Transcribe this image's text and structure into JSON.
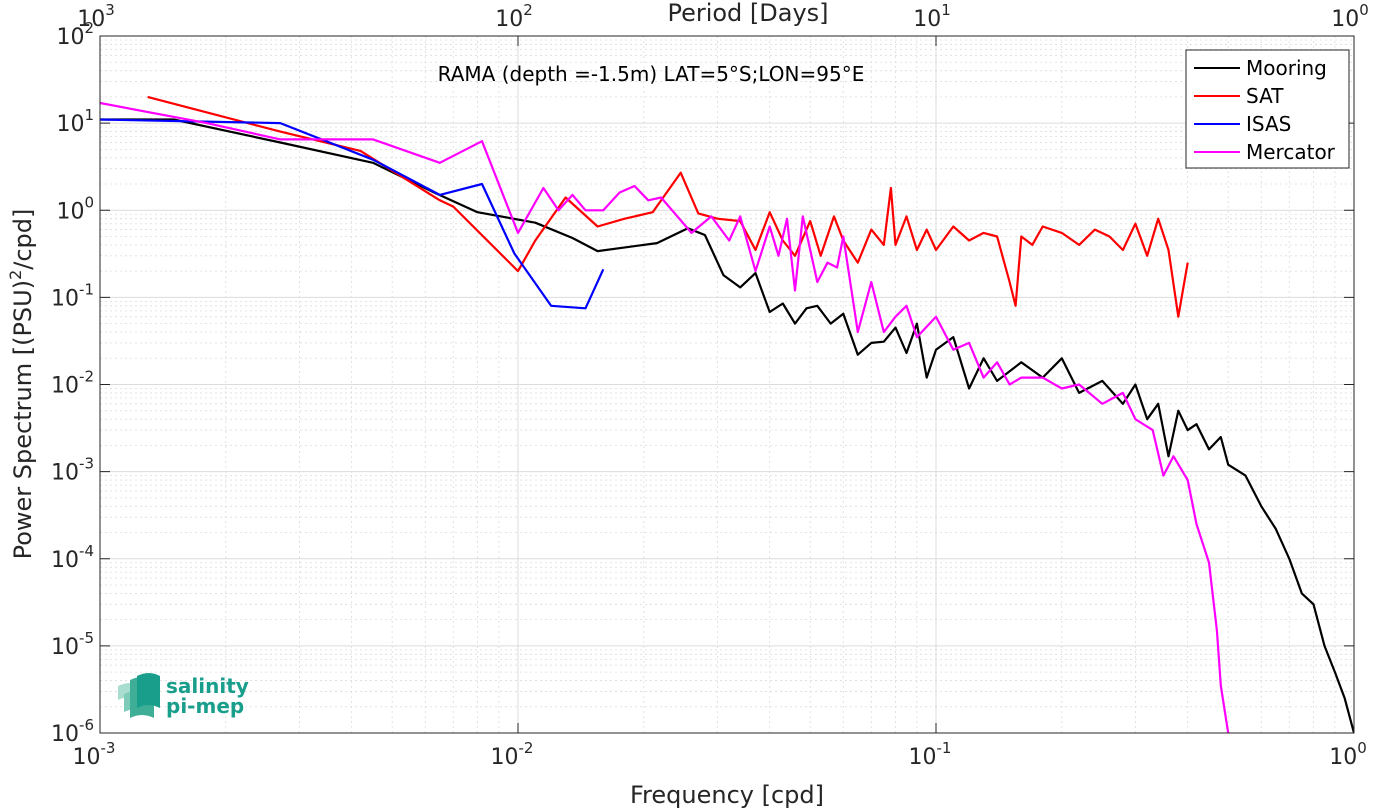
{
  "chart_data": {
    "type": "line",
    "title": "RAMA (depth =-1.5m) LAT=5°S;LON=95°E",
    "xlabel": "Frequency [cpd]",
    "ylabel_main": "Power Spectrum [(PSU)",
    "ylabel_sup": "2",
    "ylabel_tail": "/cpd]",
    "top_xlabel": "Period [Days]",
    "xscale": "log",
    "yscale": "log",
    "xlim": [
      0.001,
      1
    ],
    "ylim": [
      1e-06,
      100
    ],
    "grid": true,
    "legend_position": "top-right",
    "x_ticks": [
      {
        "value": 0.001,
        "base": "10",
        "exp": "-3"
      },
      {
        "value": 0.01,
        "base": "10",
        "exp": "-2"
      },
      {
        "value": 0.1,
        "base": "10",
        "exp": "-1"
      },
      {
        "value": 1,
        "base": "10",
        "exp": "0"
      }
    ],
    "top_ticks": [
      {
        "value": 0.001,
        "base": "10",
        "exp": "3"
      },
      {
        "value": 0.01,
        "base": "10",
        "exp": "2"
      },
      {
        "value": 0.1,
        "base": "10",
        "exp": "1"
      },
      {
        "value": 1,
        "base": "10",
        "exp": "0"
      }
    ],
    "y_ticks": [
      {
        "value": 100,
        "base": "10",
        "exp": "2"
      },
      {
        "value": 10,
        "base": "10",
        "exp": "1"
      },
      {
        "value": 1,
        "base": "10",
        "exp": "0"
      },
      {
        "value": 0.1,
        "base": "10",
        "exp": "-1"
      },
      {
        "value": 0.01,
        "base": "10",
        "exp": "-2"
      },
      {
        "value": 0.001,
        "base": "10",
        "exp": "-3"
      },
      {
        "value": 0.0001,
        "base": "10",
        "exp": "-4"
      },
      {
        "value": 1e-05,
        "base": "10",
        "exp": "-5"
      },
      {
        "value": 1e-06,
        "base": "10",
        "exp": "-6"
      }
    ],
    "series": [
      {
        "name": "Mooring",
        "color": "#000000",
        "x": [
          0.001,
          0.0015,
          0.0027,
          0.0045,
          0.0063,
          0.008,
          0.011,
          0.0135,
          0.0155,
          0.0215,
          0.0255,
          0.028,
          0.031,
          0.034,
          0.037,
          0.04,
          0.043,
          0.046,
          0.049,
          0.052,
          0.056,
          0.06,
          0.065,
          0.07,
          0.075,
          0.08,
          0.085,
          0.09,
          0.095,
          0.1,
          0.11,
          0.12,
          0.13,
          0.14,
          0.16,
          0.18,
          0.2,
          0.22,
          0.25,
          0.28,
          0.3,
          0.32,
          0.34,
          0.36,
          0.38,
          0.4,
          0.42,
          0.45,
          0.48,
          0.5,
          0.55,
          0.6,
          0.65,
          0.7,
          0.75,
          0.8,
          0.85,
          0.9,
          0.95,
          1.0
        ],
        "y": [
          11,
          11,
          6,
          3.5,
          1.6,
          0.95,
          0.72,
          0.48,
          0.34,
          0.42,
          0.62,
          0.52,
          0.18,
          0.13,
          0.19,
          0.068,
          0.085,
          0.05,
          0.075,
          0.08,
          0.05,
          0.065,
          0.022,
          0.03,
          0.031,
          0.045,
          0.023,
          0.05,
          0.012,
          0.025,
          0.035,
          0.009,
          0.02,
          0.011,
          0.018,
          0.012,
          0.02,
          0.008,
          0.011,
          0.006,
          0.01,
          0.004,
          0.006,
          0.0015,
          0.005,
          0.003,
          0.0035,
          0.0018,
          0.0025,
          0.0012,
          0.0009,
          0.0004,
          0.00022,
          0.0001,
          4e-05,
          3e-05,
          1e-05,
          5e-06,
          2.5e-06,
          1e-06
        ]
      },
      {
        "name": "SAT",
        "color": "#ff0000",
        "x": [
          0.0013,
          0.0027,
          0.0042,
          0.0065,
          0.007,
          0.01,
          0.011,
          0.013,
          0.0155,
          0.018,
          0.021,
          0.0245,
          0.027,
          0.03,
          0.034,
          0.037,
          0.04,
          0.043,
          0.046,
          0.05,
          0.053,
          0.057,
          0.06,
          0.065,
          0.07,
          0.075,
          0.078,
          0.08,
          0.085,
          0.09,
          0.095,
          0.1,
          0.11,
          0.12,
          0.13,
          0.14,
          0.15,
          0.155,
          0.16,
          0.17,
          0.18,
          0.2,
          0.22,
          0.24,
          0.26,
          0.28,
          0.3,
          0.32,
          0.34,
          0.36,
          0.38,
          0.4
        ],
        "y": [
          20,
          8,
          4.8,
          1.3,
          1.1,
          0.2,
          0.45,
          1.4,
          0.65,
          0.8,
          0.95,
          2.7,
          0.92,
          0.8,
          0.75,
          0.35,
          0.95,
          0.45,
          0.3,
          0.75,
          0.3,
          0.85,
          0.45,
          0.25,
          0.6,
          0.4,
          1.8,
          0.4,
          0.85,
          0.35,
          0.6,
          0.35,
          0.65,
          0.45,
          0.55,
          0.5,
          0.15,
          0.08,
          0.5,
          0.4,
          0.65,
          0.55,
          0.4,
          0.6,
          0.5,
          0.35,
          0.7,
          0.3,
          0.8,
          0.35,
          0.06,
          0.25
        ]
      },
      {
        "name": "ISAS",
        "color": "#0000ff",
        "x": [
          0.001,
          0.0027,
          0.0045,
          0.0065,
          0.0082,
          0.0098,
          0.012,
          0.0145,
          0.016
        ],
        "y": [
          11,
          10,
          3.8,
          1.5,
          2.0,
          0.32,
          0.08,
          0.075,
          0.21
        ]
      },
      {
        "name": "Mercator",
        "color": "#ff00ff",
        "x": [
          0.001,
          0.0018,
          0.0027,
          0.0045,
          0.0065,
          0.0082,
          0.01,
          0.0115,
          0.0125,
          0.0135,
          0.0145,
          0.016,
          0.0175,
          0.019,
          0.0205,
          0.022,
          0.026,
          0.029,
          0.032,
          0.034,
          0.037,
          0.04,
          0.042,
          0.044,
          0.046,
          0.048,
          0.052,
          0.055,
          0.058,
          0.06,
          0.065,
          0.07,
          0.075,
          0.08,
          0.085,
          0.09,
          0.1,
          0.11,
          0.12,
          0.13,
          0.14,
          0.15,
          0.16,
          0.18,
          0.2,
          0.22,
          0.25,
          0.28,
          0.3,
          0.33,
          0.35,
          0.37,
          0.4,
          0.42,
          0.45,
          0.47,
          0.48,
          0.5
        ],
        "y": [
          17,
          10,
          6.5,
          6.5,
          3.5,
          6.2,
          0.55,
          1.8,
          1.0,
          1.5,
          1.0,
          1.0,
          1.6,
          1.9,
          1.3,
          1.4,
          0.55,
          0.85,
          0.45,
          0.85,
          0.2,
          0.65,
          0.3,
          0.8,
          0.12,
          0.85,
          0.15,
          0.25,
          0.22,
          0.5,
          0.04,
          0.15,
          0.04,
          0.06,
          0.08,
          0.035,
          0.06,
          0.025,
          0.03,
          0.012,
          0.018,
          0.01,
          0.012,
          0.012,
          0.009,
          0.01,
          0.006,
          0.008,
          0.004,
          0.003,
          0.0009,
          0.0015,
          0.0008,
          0.00025,
          9e-05,
          1.5e-05,
          3.5e-06,
          1e-06
        ]
      }
    ]
  },
  "logo": {
    "line1": "salinity",
    "line2": "pi-mep",
    "color": "#1a9e8c"
  }
}
